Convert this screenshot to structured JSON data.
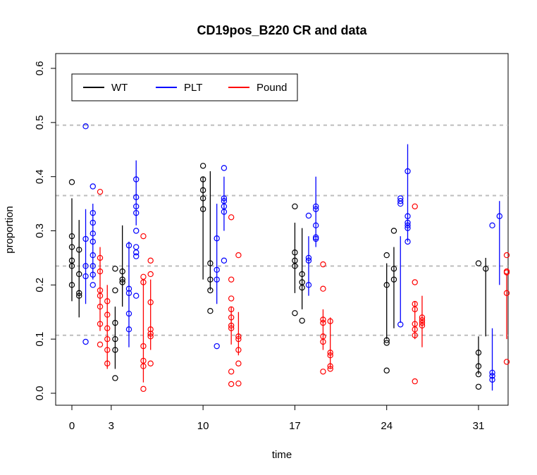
{
  "chart_data": {
    "type": "scatter",
    "title": "CD19pos_B220 CR and data",
    "xlabel": "time",
    "ylabel": "proportion",
    "xlim": [
      -3,
      33
    ],
    "ylim": [
      -0.02,
      0.62
    ],
    "xticks": [
      0,
      3,
      10,
      17,
      24,
      31
    ],
    "xtick_labels": [
      "0",
      "3",
      "10",
      "17",
      "24",
      "31"
    ],
    "yticks": [
      0.0,
      0.1,
      0.2,
      0.3,
      0.4,
      0.5,
      0.6
    ],
    "ytick_labels": [
      "0.0",
      "0.1",
      "0.2",
      "0.3",
      "0.4",
      "0.5",
      "0.6"
    ],
    "hlines": [
      0.107,
      0.235,
      0.365,
      0.495
    ],
    "legend": {
      "placement": "top-left",
      "entries": [
        "WT",
        "PLT",
        "Pound"
      ]
    },
    "colors": {
      "WT": "#000000",
      "PLT": "#0000ff",
      "Pound": "#ff0000",
      "hline": "#bdbdbd"
    },
    "series": [
      {
        "name": "WT",
        "groups": [
          {
            "x": 0.0,
            "ci": [
              0.17,
              0.36
            ],
            "points": [
              0.39,
              0.29,
              0.27,
              0.245,
              0.235,
              0.2
            ]
          },
          {
            "x": 0.55,
            "ci": [
              0.14,
              0.32
            ],
            "points": [
              0.265,
              0.22,
              0.185,
              0.18
            ]
          },
          {
            "x": 3.3,
            "ci": [
              0.045,
              0.16
            ],
            "points": [
              0.23,
              0.19,
              0.13,
              0.1,
              0.08,
              0.028
            ]
          },
          {
            "x": 3.85,
            "ci": [
              0.16,
              0.31
            ],
            "points": [
              0.225,
              0.21,
              0.205
            ]
          },
          {
            "x": 10.0,
            "ci": [
              0.21,
              0.4
            ],
            "points": [
              0.42,
              0.395,
              0.375,
              0.36,
              0.34
            ]
          },
          {
            "x": 10.55,
            "ci": [
              0.19,
              0.41
            ],
            "points": [
              0.24,
              0.21,
              0.19,
              0.152
            ]
          },
          {
            "x": 17.0,
            "ci": [
              0.185,
              0.315
            ],
            "points": [
              0.345,
              0.26,
              0.245,
              0.235,
              0.148
            ]
          },
          {
            "x": 17.55,
            "ci": [
              0.155,
              0.305
            ],
            "points": [
              0.22,
              0.205,
              0.195,
              0.134
            ]
          },
          {
            "x": 24.0,
            "ci": [
              0.1,
              0.24
            ],
            "points": [
              0.255,
              0.2,
              0.098,
              0.093,
              0.042
            ]
          },
          {
            "x": 24.55,
            "ci": [
              0.12,
              0.27
            ],
            "points": [
              0.3,
              0.23,
              0.21
            ]
          },
          {
            "x": 31.0,
            "ci": [
              0.035,
              0.105
            ],
            "points": [
              0.24,
              0.075,
              0.05,
              0.035,
              0.012
            ]
          },
          {
            "x": 31.55,
            "ci": [
              0.105,
              0.25
            ],
            "points": [
              0.23
            ]
          }
        ]
      },
      {
        "name": "PLT",
        "groups": [
          {
            "x": 1.05,
            "ci": [
              0.165,
              0.34
            ],
            "points": [
              0.493,
              0.285,
              0.235,
              0.216,
              0.095
            ]
          },
          {
            "x": 1.6,
            "ci": [
              0.21,
              0.35
            ],
            "points": [
              0.382,
              0.333,
              0.315,
              0.295,
              0.28,
              0.255,
              0.235,
              0.219,
              0.2
            ]
          },
          {
            "x": 4.35,
            "ci": [
              0.085,
              0.28
            ],
            "points": [
              0.273,
              0.193,
              0.185,
              0.147,
              0.118
            ]
          },
          {
            "x": 4.9,
            "ci": [
              0.31,
              0.43
            ],
            "points": [
              0.395,
              0.362,
              0.345,
              0.333,
              0.3,
              0.27,
              0.26,
              0.253,
              0.18
            ]
          },
          {
            "x": 11.05,
            "ci": [
              0.165,
              0.35
            ],
            "points": [
              0.286,
              0.228,
              0.21,
              0.087
            ]
          },
          {
            "x": 11.6,
            "ci": [
              0.3,
              0.4
            ],
            "points": [
              0.416,
              0.36,
              0.355,
              0.345,
              0.335,
              0.245
            ]
          },
          {
            "x": 18.05,
            "ci": [
              0.18,
              0.29
            ],
            "points": [
              0.328,
              0.25,
              0.245,
              0.2
            ]
          },
          {
            "x": 18.6,
            "ci": [
              0.27,
              0.4
            ],
            "points": [
              0.345,
              0.34,
              0.31,
              0.288,
              0.285
            ]
          },
          {
            "x": 25.05,
            "ci": [
              0.13,
              0.29
            ],
            "points": [
              0.36,
              0.355,
              0.35,
              0.127
            ]
          },
          {
            "x": 25.6,
            "ci": [
              0.28,
              0.46
            ],
            "points": [
              0.41,
              0.327,
              0.315,
              0.31,
              0.305,
              0.28
            ]
          },
          {
            "x": 32.05,
            "ci": [
              0.005,
              0.12
            ],
            "points": [
              0.31,
              0.038,
              0.032,
              0.025
            ]
          },
          {
            "x": 32.6,
            "ci": [
              0.2,
              0.355
            ],
            "points": [
              0.327
            ]
          }
        ]
      },
      {
        "name": "Pound",
        "groups": [
          {
            "x": 2.15,
            "ci": [
              0.115,
              0.27
            ],
            "points": [
              0.372,
              0.25,
              0.225,
              0.19,
              0.18,
              0.16,
              0.128,
              0.09
            ]
          },
          {
            "x": 2.7,
            "ci": [
              0.045,
              0.2
            ],
            "points": [
              0.17,
              0.145,
              0.12,
              0.1,
              0.08,
              0.055
            ]
          },
          {
            "x": 5.45,
            "ci": [
              0.02,
              0.21
            ],
            "points": [
              0.29,
              0.215,
              0.205,
              0.087,
              0.06,
              0.05,
              0.008
            ]
          },
          {
            "x": 6.0,
            "ci": [
              0.08,
              0.21
            ],
            "points": [
              0.245,
              0.22,
              0.168,
              0.118,
              0.11,
              0.105,
              0.055
            ]
          },
          {
            "x": 12.15,
            "ci": [
              0.09,
              0.16
            ],
            "points": [
              0.325,
              0.21,
              0.175,
              0.155,
              0.14,
              0.125,
              0.12,
              0.04,
              0.017
            ]
          },
          {
            "x": 12.7,
            "ci": [
              0.07,
              0.15
            ],
            "points": [
              0.255,
              0.105,
              0.1,
              0.08,
              0.055,
              0.018
            ]
          },
          {
            "x": 19.15,
            "ci": [
              0.08,
              0.155
            ],
            "points": [
              0.238,
              0.193,
              0.136,
              0.13,
              0.105,
              0.095,
              0.04
            ]
          },
          {
            "x": 19.7,
            "ci": [
              0.045,
              0.14
            ],
            "points": [
              0.133,
              0.075,
              0.07,
              0.05,
              0.045
            ]
          },
          {
            "x": 26.15,
            "ci": [
              0.1,
              0.17
            ],
            "points": [
              0.345,
              0.205,
              0.165,
              0.155,
              0.128,
              0.118,
              0.107,
              0.022
            ]
          },
          {
            "x": 26.7,
            "ci": [
              0.085,
              0.18
            ],
            "points": [
              0.14,
              0.135,
              0.13,
              0.125
            ]
          },
          {
            "x": 33.15,
            "ci": [
              0.1,
              0.22
            ],
            "points": [
              0.255,
              0.225,
              0.223,
              0.185,
              0.058
            ]
          }
        ]
      }
    ]
  }
}
